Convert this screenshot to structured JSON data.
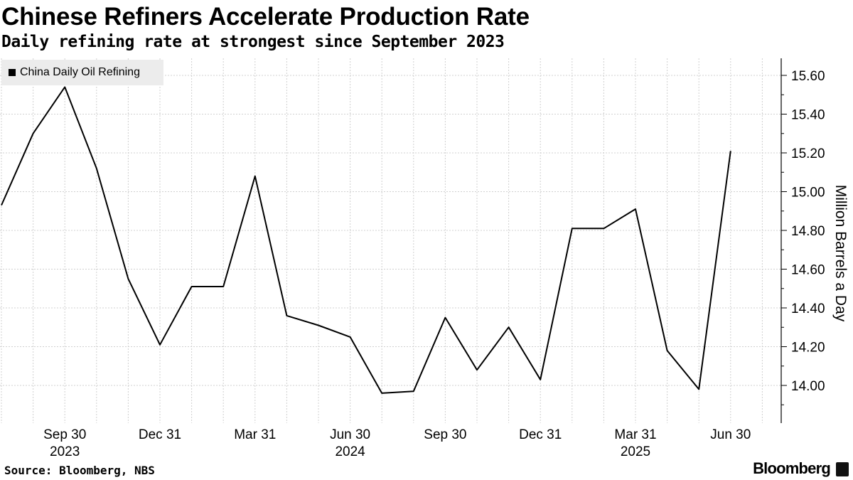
{
  "header": {
    "title": "Chinese Refiners Accelerate Production Rate",
    "subtitle": "Daily refining rate at strongest since September 2023"
  },
  "footer": {
    "source": "Source: Bloomberg, NBS",
    "brand": "Bloomberg"
  },
  "chart_data": {
    "type": "line",
    "title": "Chinese Refiners Accelerate Production Rate",
    "subtitle": "Daily refining rate at strongest since September 2023",
    "xlabel": "",
    "ylabel": "Million Barrels a Day",
    "ylim": [
      13.8,
      15.7
    ],
    "yticks": [
      "14.00",
      "14.20",
      "14.40",
      "14.60",
      "14.80",
      "15.00",
      "15.20",
      "15.40",
      "15.60"
    ],
    "grid": true,
    "legend_position": "top-left",
    "line_color": "#000000",
    "x_tick_labels": [
      {
        "label": "Sep 30",
        "year": "2023"
      },
      {
        "label": "Dec 31",
        "year": ""
      },
      {
        "label": "Mar 31",
        "year": ""
      },
      {
        "label": "Jun 30",
        "year": "2024"
      },
      {
        "label": "Sep 30",
        "year": ""
      },
      {
        "label": "Dec 31",
        "year": ""
      },
      {
        "label": "Mar 31",
        "year": "2025"
      },
      {
        "label": "Jun 30",
        "year": ""
      }
    ],
    "series": [
      {
        "name": "China Daily Oil Refining",
        "x": [
          "2023-07-31",
          "2023-08-31",
          "2023-09-30",
          "2023-10-31",
          "2023-11-30",
          "2023-12-31",
          "2024-01-31",
          "2024-02-29",
          "2024-03-31",
          "2024-04-30",
          "2024-05-31",
          "2024-06-30",
          "2024-07-31",
          "2024-08-31",
          "2024-09-30",
          "2024-10-31",
          "2024-11-30",
          "2024-12-31",
          "2025-01-31",
          "2025-02-28",
          "2025-03-31",
          "2025-04-30",
          "2025-05-31",
          "2025-06-30"
        ],
        "values": [
          14.93,
          15.3,
          15.54,
          15.12,
          14.55,
          14.21,
          14.51,
          14.51,
          15.08,
          14.36,
          14.31,
          14.25,
          13.96,
          13.97,
          14.35,
          14.08,
          14.3,
          14.03,
          14.81,
          14.81,
          14.91,
          14.18,
          13.98,
          15.21
        ]
      }
    ]
  }
}
